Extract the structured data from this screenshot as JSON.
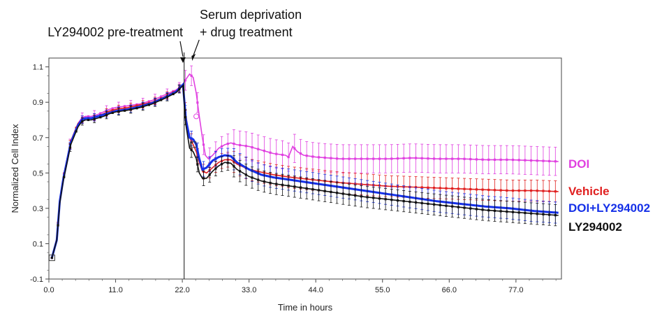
{
  "chart_data": {
    "type": "line",
    "title": "",
    "xlabel": "Time in hours",
    "ylabel": "Normalized Cell Index",
    "xlim": [
      0,
      84.5
    ],
    "ylim": [
      -0.1,
      1.15
    ],
    "xticks": [
      "0.0",
      "11.0",
      "22.0",
      "33.0",
      "44.0",
      "55.0",
      "66.0",
      "77.0"
    ],
    "xtick_values": [
      0,
      11,
      22,
      33,
      44,
      55,
      66,
      77
    ],
    "yticks": [
      "-0.1",
      "0.1",
      "0.3",
      "0.5",
      "0.7",
      "0.9",
      "1.1"
    ],
    "ytick_values": [
      -0.1,
      0.1,
      0.3,
      0.5,
      0.7,
      0.9,
      1.1
    ],
    "grid": false,
    "legend": "right, labels beside line ends",
    "annotations": {
      "pretreatment": "LY294002 pre-treatment",
      "deprivation_line1": "Serum deprivation",
      "deprivation_line2": "+ drug treatment",
      "pretreatment_time": 22.1,
      "deprivation_time": 23.4,
      "vertical_line_x": 22.3
    },
    "series": [
      {
        "name": "DOI",
        "color": "#e040e0",
        "error": 0.08,
        "points": [
          [
            0.5,
            0.02
          ],
          [
            1.3,
            0.13
          ],
          [
            1.8,
            0.35
          ],
          [
            2.4,
            0.48
          ],
          [
            3.0,
            0.58
          ],
          [
            3.6,
            0.68
          ],
          [
            4.2,
            0.73
          ],
          [
            4.8,
            0.78
          ],
          [
            5.4,
            0.81
          ],
          [
            6.0,
            0.82
          ],
          [
            7.0,
            0.82
          ],
          [
            8.0,
            0.83
          ],
          [
            9.0,
            0.845
          ],
          [
            10.0,
            0.86
          ],
          [
            11.0,
            0.87
          ],
          [
            13.0,
            0.88
          ],
          [
            15.0,
            0.89
          ],
          [
            17.0,
            0.91
          ],
          [
            19.0,
            0.94
          ],
          [
            21.0,
            0.97
          ],
          [
            22.1,
            1.0
          ],
          [
            22.6,
            1.03
          ],
          [
            23.2,
            1.06
          ],
          [
            23.8,
            1.04
          ],
          [
            24.3,
            0.95
          ],
          [
            24.8,
            0.82
          ],
          [
            25.3,
            0.7
          ],
          [
            25.8,
            0.6
          ],
          [
            26.3,
            0.58
          ],
          [
            27.0,
            0.6
          ],
          [
            28.0,
            0.64
          ],
          [
            29.0,
            0.66
          ],
          [
            30.0,
            0.67
          ],
          [
            31.0,
            0.66
          ],
          [
            33.0,
            0.65
          ],
          [
            35.0,
            0.63
          ],
          [
            37.0,
            0.61
          ],
          [
            39.0,
            0.6
          ],
          [
            39.5,
            0.59
          ],
          [
            40.2,
            0.65
          ],
          [
            41.0,
            0.62
          ],
          [
            42.0,
            0.6
          ],
          [
            44.0,
            0.59
          ],
          [
            48.0,
            0.58
          ],
          [
            52.0,
            0.58
          ],
          [
            56.0,
            0.58
          ],
          [
            60.0,
            0.585
          ],
          [
            64.0,
            0.58
          ],
          [
            68.0,
            0.58
          ],
          [
            72.0,
            0.575
          ],
          [
            76.0,
            0.575
          ],
          [
            80.0,
            0.57
          ],
          [
            84.0,
            0.565
          ]
        ]
      },
      {
        "name": "Vehicle",
        "color": "#e02020",
        "error": 0.06,
        "points": [
          [
            0.5,
            0.02
          ],
          [
            1.3,
            0.13
          ],
          [
            1.8,
            0.35
          ],
          [
            2.4,
            0.48
          ],
          [
            3.0,
            0.58
          ],
          [
            3.6,
            0.68
          ],
          [
            4.2,
            0.73
          ],
          [
            4.8,
            0.78
          ],
          [
            5.4,
            0.8
          ],
          [
            6.0,
            0.81
          ],
          [
            7.0,
            0.81
          ],
          [
            8.0,
            0.82
          ],
          [
            9.0,
            0.835
          ],
          [
            10.0,
            0.85
          ],
          [
            11.0,
            0.86
          ],
          [
            13.0,
            0.87
          ],
          [
            15.0,
            0.885
          ],
          [
            17.0,
            0.9
          ],
          [
            19.0,
            0.93
          ],
          [
            21.0,
            0.965
          ],
          [
            22.1,
            1.0
          ],
          [
            22.6,
            0.82
          ],
          [
            23.2,
            0.7
          ],
          [
            23.8,
            0.66
          ],
          [
            24.3,
            0.62
          ],
          [
            24.8,
            0.56
          ],
          [
            25.3,
            0.51
          ],
          [
            26.0,
            0.5
          ],
          [
            27.0,
            0.53
          ],
          [
            28.0,
            0.56
          ],
          [
            29.0,
            0.575
          ],
          [
            30.0,
            0.575
          ],
          [
            31.0,
            0.55
          ],
          [
            33.0,
            0.52
          ],
          [
            35.0,
            0.505
          ],
          [
            37.0,
            0.49
          ],
          [
            40.0,
            0.475
          ],
          [
            44.0,
            0.46
          ],
          [
            48.0,
            0.445
          ],
          [
            52.0,
            0.435
          ],
          [
            56.0,
            0.425
          ],
          [
            60.0,
            0.42
          ],
          [
            64.0,
            0.415
          ],
          [
            68.0,
            0.41
          ],
          [
            72.0,
            0.405
          ],
          [
            76.0,
            0.4
          ],
          [
            80.0,
            0.4
          ],
          [
            84.0,
            0.395
          ]
        ]
      },
      {
        "name": "DOI+LY294002",
        "color": "#1530e8",
        "error": 0.06,
        "points": [
          [
            0.5,
            0.02
          ],
          [
            1.3,
            0.12
          ],
          [
            1.8,
            0.34
          ],
          [
            2.4,
            0.47
          ],
          [
            3.0,
            0.57
          ],
          [
            3.6,
            0.67
          ],
          [
            4.2,
            0.72
          ],
          [
            4.8,
            0.77
          ],
          [
            5.4,
            0.8
          ],
          [
            6.0,
            0.81
          ],
          [
            7.0,
            0.81
          ],
          [
            8.0,
            0.82
          ],
          [
            9.0,
            0.83
          ],
          [
            10.0,
            0.84
          ],
          [
            11.0,
            0.85
          ],
          [
            13.0,
            0.86
          ],
          [
            15.0,
            0.875
          ],
          [
            17.0,
            0.895
          ],
          [
            19.0,
            0.925
          ],
          [
            21.0,
            0.96
          ],
          [
            22.1,
            1.0
          ],
          [
            22.6,
            0.8
          ],
          [
            23.2,
            0.7
          ],
          [
            23.8,
            0.69
          ],
          [
            24.3,
            0.66
          ],
          [
            24.8,
            0.58
          ],
          [
            25.3,
            0.52
          ],
          [
            26.0,
            0.53
          ],
          [
            27.0,
            0.57
          ],
          [
            28.0,
            0.59
          ],
          [
            29.0,
            0.6
          ],
          [
            30.0,
            0.595
          ],
          [
            31.0,
            0.56
          ],
          [
            33.0,
            0.52
          ],
          [
            35.0,
            0.49
          ],
          [
            37.0,
            0.475
          ],
          [
            40.0,
            0.46
          ],
          [
            44.0,
            0.44
          ],
          [
            48.0,
            0.42
          ],
          [
            52.0,
            0.4
          ],
          [
            56.0,
            0.38
          ],
          [
            60.0,
            0.36
          ],
          [
            64.0,
            0.34
          ],
          [
            68.0,
            0.325
          ],
          [
            72.0,
            0.31
          ],
          [
            76.0,
            0.3
          ],
          [
            80.0,
            0.285
          ],
          [
            84.0,
            0.275
          ]
        ]
      },
      {
        "name": "LY294002",
        "color": "#111111",
        "error": 0.06,
        "points": [
          [
            0.5,
            0.02
          ],
          [
            1.3,
            0.12
          ],
          [
            1.8,
            0.33
          ],
          [
            2.4,
            0.46
          ],
          [
            3.0,
            0.56
          ],
          [
            3.6,
            0.66
          ],
          [
            4.2,
            0.71
          ],
          [
            4.8,
            0.76
          ],
          [
            5.4,
            0.79
          ],
          [
            6.0,
            0.8
          ],
          [
            7.0,
            0.8
          ],
          [
            8.0,
            0.81
          ],
          [
            9.0,
            0.82
          ],
          [
            10.0,
            0.835
          ],
          [
            11.0,
            0.845
          ],
          [
            13.0,
            0.855
          ],
          [
            15.0,
            0.87
          ],
          [
            17.0,
            0.89
          ],
          [
            19.0,
            0.92
          ],
          [
            21.0,
            0.955
          ],
          [
            22.1,
            0.995
          ],
          [
            22.6,
            0.77
          ],
          [
            23.2,
            0.64
          ],
          [
            23.8,
            0.62
          ],
          [
            24.3,
            0.58
          ],
          [
            24.8,
            0.5
          ],
          [
            25.3,
            0.47
          ],
          [
            26.0,
            0.47
          ],
          [
            27.0,
            0.51
          ],
          [
            28.0,
            0.54
          ],
          [
            29.0,
            0.56
          ],
          [
            30.0,
            0.555
          ],
          [
            31.0,
            0.52
          ],
          [
            33.0,
            0.48
          ],
          [
            35.0,
            0.455
          ],
          [
            37.0,
            0.44
          ],
          [
            40.0,
            0.425
          ],
          [
            44.0,
            0.405
          ],
          [
            48.0,
            0.385
          ],
          [
            52.0,
            0.365
          ],
          [
            56.0,
            0.35
          ],
          [
            60.0,
            0.335
          ],
          [
            64.0,
            0.32
          ],
          [
            68.0,
            0.305
          ],
          [
            72.0,
            0.29
          ],
          [
            76.0,
            0.28
          ],
          [
            80.0,
            0.27
          ],
          [
            84.0,
            0.26
          ]
        ]
      }
    ]
  }
}
